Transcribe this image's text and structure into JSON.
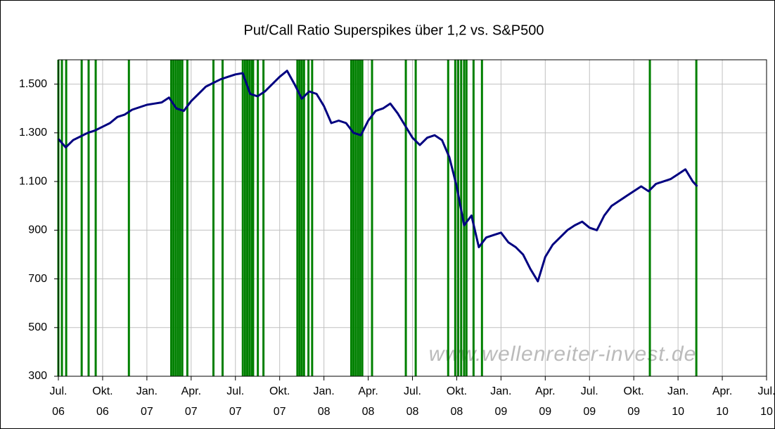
{
  "chart_data": {
    "type": "line",
    "title": "Put/Call Ratio Superspikes über 1,2 vs. S&P500",
    "watermark": "www.wellenreiter-invest.de",
    "xlim": [
      0,
      48
    ],
    "xticks": [
      {
        "value": 0,
        "label": "Jul. 06"
      },
      {
        "value": 3,
        "label": "Okt. 06"
      },
      {
        "value": 6,
        "label": "Jan. 07"
      },
      {
        "value": 9,
        "label": "Apr. 07"
      },
      {
        "value": 12,
        "label": "Jul. 07"
      },
      {
        "value": 15,
        "label": "Okt. 07"
      },
      {
        "value": 18,
        "label": "Jan. 08"
      },
      {
        "value": 21,
        "label": "Apr. 08"
      },
      {
        "value": 24,
        "label": "Jul. 08"
      },
      {
        "value": 27,
        "label": "Okt. 08"
      },
      {
        "value": 30,
        "label": "Jan. 09"
      },
      {
        "value": 33,
        "label": "Apr. 09"
      },
      {
        "value": 36,
        "label": "Jul. 09"
      },
      {
        "value": 39,
        "label": "Okt. 09"
      },
      {
        "value": 42,
        "label": "Jan. 10"
      },
      {
        "value": 45,
        "label": "Apr. 10"
      },
      {
        "value": 48,
        "label": "Jul. 10"
      }
    ],
    "ylim": [
      300,
      1600
    ],
    "yticks": [
      300,
      500,
      700,
      900,
      {
        "value": 1100,
        "label": "1.100"
      },
      {
        "value": 1300,
        "label": "1.300"
      },
      {
        "value": 1500,
        "label": "1.500"
      }
    ],
    "grid": true,
    "series": [
      {
        "color": "#000080",
        "x": [
          0,
          0.5,
          1,
          1.5,
          2,
          2.5,
          3,
          3.5,
          4,
          4.5,
          5,
          5.5,
          6,
          6.5,
          7,
          7.5,
          8,
          8.5,
          9,
          9.5,
          10,
          10.5,
          11,
          11.5,
          12,
          12.5,
          13,
          13.5,
          14,
          14.5,
          15,
          15.5,
          16,
          16.5,
          17,
          17.5,
          18,
          18.5,
          19,
          19.5,
          20,
          20.5,
          21,
          21.5,
          22,
          22.5,
          23,
          23.5,
          24,
          24.5,
          25,
          25.5,
          26,
          26.5,
          27,
          27.5,
          28,
          28.5,
          29,
          29.5,
          30,
          30.5,
          31,
          31.5,
          32,
          32.5,
          33,
          33.5,
          34,
          34.5,
          35,
          35.5,
          36,
          36.5,
          37,
          37.5,
          38,
          38.5,
          39,
          39.5,
          40,
          40.5,
          41,
          41.5,
          42,
          42.5,
          43,
          43.3
        ],
        "values": [
          1275,
          1240,
          1270,
          1285,
          1300,
          1310,
          1325,
          1340,
          1365,
          1375,
          1395,
          1405,
          1415,
          1420,
          1425,
          1445,
          1400,
          1390,
          1430,
          1460,
          1490,
          1505,
          1520,
          1530,
          1540,
          1545,
          1460,
          1450,
          1470,
          1500,
          1530,
          1555,
          1500,
          1440,
          1470,
          1460,
          1410,
          1340,
          1350,
          1340,
          1300,
          1290,
          1350,
          1390,
          1400,
          1420,
          1380,
          1330,
          1280,
          1250,
          1280,
          1290,
          1270,
          1200,
          1080,
          920,
          960,
          830,
          870,
          880,
          890,
          850,
          830,
          800,
          740,
          690,
          790,
          840,
          870,
          900,
          920,
          935,
          910,
          900,
          960,
          1000,
          1020,
          1040,
          1060,
          1080,
          1060,
          1090,
          1100,
          1110,
          1130,
          1150,
          1100,
          1080
        ]
      }
    ],
    "spikes": {
      "color": "#008000",
      "x": [
        0,
        0.24,
        0.53,
        1.58,
        2.05,
        2.53,
        4.78,
        7.65,
        7.8,
        7.95,
        8.1,
        8.25,
        8.4,
        8.74,
        10.51,
        11.13,
        12.5,
        12.65,
        12.8,
        12.95,
        13.1,
        13.2,
        13.52,
        13.9,
        16.2,
        16.35,
        16.5,
        16.65,
        16.95,
        17.2,
        19.85,
        20,
        20.15,
        20.3,
        20.45,
        20.6,
        21.26,
        23.55,
        24.22,
        26.42,
        26.9,
        27.1,
        27.3,
        27.5,
        27.66,
        28.14,
        28.71,
        40.09,
        43.24
      ]
    }
  }
}
